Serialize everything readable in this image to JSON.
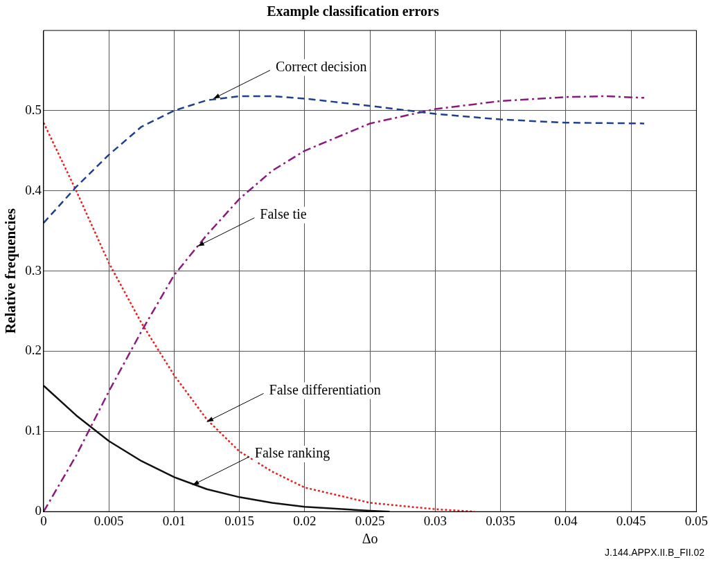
{
  "chart_data": {
    "type": "line",
    "title": "Example classification errors",
    "xlabel": "Δo",
    "ylabel": "Relative frequencies",
    "xlim": [
      0,
      0.05
    ],
    "xticks": [
      0,
      0.005,
      0.01,
      0.015,
      0.02,
      0.025,
      0.03,
      0.035,
      0.04,
      0.045,
      0.05
    ],
    "ylim": [
      0,
      0.6
    ],
    "yticks": [
      0,
      0.1,
      0.2,
      0.3,
      0.4,
      0.5
    ],
    "grid": true,
    "legend": false,
    "marker": "none",
    "series": [
      {
        "color": "#1f3f8f",
        "line_style": "dashed",
        "x": [
          0,
          0.0025,
          0.005,
          0.0075,
          0.01,
          0.0125,
          0.015,
          0.0175,
          0.02,
          0.025,
          0.03,
          0.035,
          0.04,
          0.046
        ],
        "values": [
          0.36,
          0.405,
          0.445,
          0.48,
          0.5,
          0.513,
          0.518,
          0.518,
          0.515,
          0.506,
          0.496,
          0.489,
          0.485,
          0.484
        ]
      },
      {
        "color": "#8b1a7f",
        "line_style": "dashdot",
        "x": [
          0,
          0.0025,
          0.005,
          0.0075,
          0.01,
          0.0125,
          0.015,
          0.0175,
          0.02,
          0.025,
          0.03,
          0.035,
          0.04,
          0.043,
          0.046
        ],
        "values": [
          0,
          0.07,
          0.15,
          0.225,
          0.295,
          0.345,
          0.39,
          0.425,
          0.45,
          0.484,
          0.502,
          0.512,
          0.517,
          0.518,
          0.516
        ]
      },
      {
        "color": "#e8201e",
        "line_style": "dotted",
        "x": [
          0,
          0.0025,
          0.005,
          0.0075,
          0.01,
          0.0125,
          0.015,
          0.0175,
          0.02,
          0.025,
          0.03,
          0.033
        ],
        "values": [
          0.485,
          0.4,
          0.31,
          0.235,
          0.17,
          0.115,
          0.075,
          0.05,
          0.03,
          0.011,
          0.003,
          0
        ]
      },
      {
        "color": "#111111",
        "line_style": "solid",
        "x": [
          0,
          0.0025,
          0.005,
          0.0075,
          0.01,
          0.0125,
          0.015,
          0.0175,
          0.02,
          0.025,
          0.0265
        ],
        "values": [
          0.157,
          0.12,
          0.088,
          0.063,
          0.043,
          0.028,
          0.018,
          0.011,
          0.006,
          0.001,
          0
        ]
      }
    ],
    "annotations": [
      {
        "text": "Correct decision",
        "x": 0.013,
        "y": 0.515
      },
      {
        "text": "False tie",
        "x": 0.0118,
        "y": 0.331
      },
      {
        "text": "False differentiation",
        "x": 0.0125,
        "y": 0.112
      },
      {
        "text": "False ranking",
        "x": 0.0114,
        "y": 0.033
      },
      "J.144.APPX.II.B_FII.02"
    ]
  }
}
